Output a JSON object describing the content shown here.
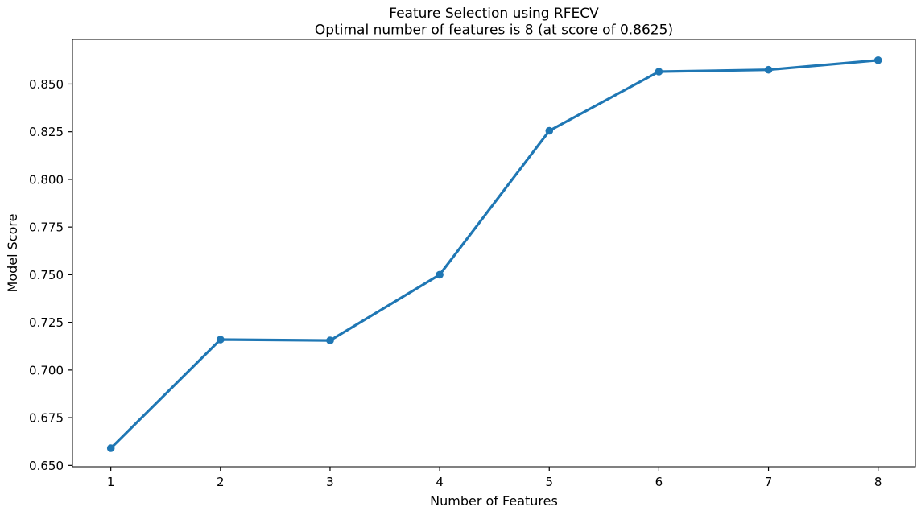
{
  "page": {
    "background": "#ffffff",
    "axis_color": "#000000"
  },
  "chart_data": {
    "type": "line",
    "title": "Feature Selection using RFECV",
    "subtitle": "Optimal number of features is 8 (at score of 0.8625)",
    "xlabel": "Number of Features",
    "ylabel": "Model Score",
    "x": [
      1,
      2,
      3,
      4,
      5,
      6,
      7,
      8
    ],
    "y": [
      0.659,
      0.716,
      0.7155,
      0.75,
      0.8255,
      0.8565,
      0.8575,
      0.8625
    ],
    "xlim": [
      0.65,
      8.34
    ],
    "ylim": [
      0.6493,
      0.8734
    ],
    "xticks": [
      1,
      2,
      3,
      4,
      5,
      6,
      7,
      8
    ],
    "xtick_labels": [
      "1",
      "2",
      "3",
      "4",
      "5",
      "6",
      "7",
      "8"
    ],
    "yticks": [
      0.65,
      0.675,
      0.7,
      0.725,
      0.75,
      0.775,
      0.8,
      0.825,
      0.85
    ],
    "ytick_labels": [
      "0.650",
      "0.675",
      "0.700",
      "0.725",
      "0.750",
      "0.775",
      "0.800",
      "0.825",
      "0.850"
    ],
    "line_color": "#1f77b4",
    "marker": "circle",
    "line_width": 3.2,
    "marker_radius": 4.8,
    "grid": false,
    "legend": "none",
    "optimal_num_features": 8,
    "optimal_score": 0.8625
  }
}
